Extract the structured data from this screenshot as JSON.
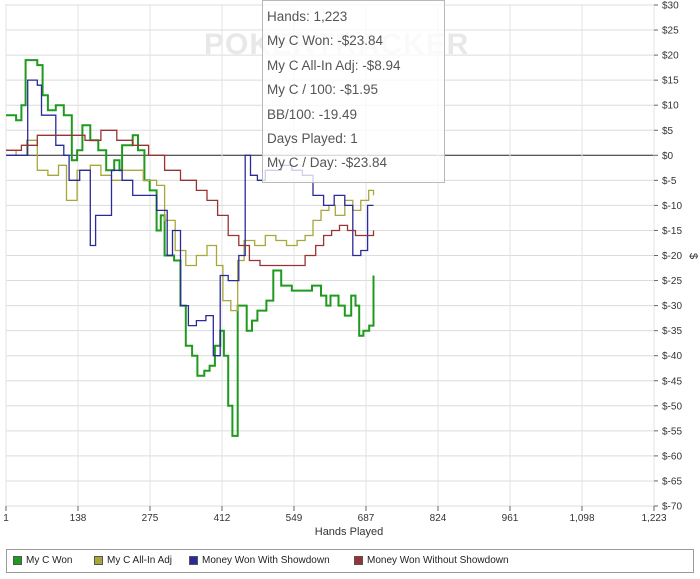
{
  "chart_data": {
    "type": "line",
    "xlabel": "Hands Played",
    "ylabel": "$",
    "xlim": [
      1,
      1223
    ],
    "ylim": [
      -70,
      30
    ],
    "x_ticks": [
      "1",
      "138",
      "275",
      "412",
      "549",
      "687",
      "824",
      "961",
      "1,098",
      "1,223"
    ],
    "y_ticks": [
      "$30",
      "$25",
      "$20",
      "$15",
      "$10",
      "$5",
      "$0",
      "$-5",
      "$-10",
      "$-15",
      "$-20",
      "$-25",
      "$-30",
      "$-35",
      "$-40",
      "$-45",
      "$-50",
      "$-55",
      "$-60",
      "$-65",
      "$-70"
    ],
    "grid": true,
    "legend_position": "bottom",
    "series": [
      {
        "name": "My C Won",
        "color": "#1f9a1f",
        "points": [
          [
            1,
            8
          ],
          [
            20,
            7
          ],
          [
            30,
            10
          ],
          [
            38,
            19
          ],
          [
            60,
            18
          ],
          [
            70,
            12
          ],
          [
            80,
            9
          ],
          [
            95,
            10
          ],
          [
            110,
            8
          ],
          [
            125,
            -1
          ],
          [
            135,
            1
          ],
          [
            145,
            6
          ],
          [
            160,
            3
          ],
          [
            175,
            1
          ],
          [
            190,
            -3
          ],
          [
            205,
            -1
          ],
          [
            215,
            -3
          ],
          [
            220,
            2
          ],
          [
            240,
            4
          ],
          [
            250,
            1
          ],
          [
            262,
            -5
          ],
          [
            272,
            -7
          ],
          [
            285,
            -15
          ],
          [
            293,
            -12
          ],
          [
            300,
            -20
          ],
          [
            318,
            -21
          ],
          [
            330,
            -30
          ],
          [
            340,
            -38
          ],
          [
            352,
            -40
          ],
          [
            362,
            -44
          ],
          [
            375,
            -43
          ],
          [
            385,
            -42
          ],
          [
            395,
            -38
          ],
          [
            405,
            -35
          ],
          [
            412,
            -40
          ],
          [
            420,
            -50
          ],
          [
            428,
            -56
          ],
          [
            438,
            -30
          ],
          [
            455,
            -35
          ],
          [
            465,
            -33
          ],
          [
            475,
            -31
          ],
          [
            492,
            -29
          ],
          [
            505,
            -23
          ],
          [
            520,
            -26
          ],
          [
            540,
            -27
          ],
          [
            560,
            -27
          ],
          [
            578,
            -26
          ],
          [
            595,
            -28
          ],
          [
            605,
            -30
          ],
          [
            613,
            -28
          ],
          [
            628,
            -30
          ],
          [
            640,
            -32
          ],
          [
            652,
            -28
          ],
          [
            660,
            -30
          ],
          [
            667,
            -36
          ],
          [
            675,
            -35
          ],
          [
            686,
            -34
          ],
          [
            694,
            -24
          ]
        ]
      },
      {
        "name": "My C All-In Adj",
        "color": "#a8a83a",
        "points": [
          [
            1,
            1
          ],
          [
            20,
            0
          ],
          [
            40,
            3
          ],
          [
            60,
            -3
          ],
          [
            80,
            -4
          ],
          [
            100,
            -2
          ],
          [
            115,
            -9
          ],
          [
            135,
            -3
          ],
          [
            160,
            -2
          ],
          [
            180,
            -4
          ],
          [
            200,
            -5
          ],
          [
            220,
            -3
          ],
          [
            240,
            -3
          ],
          [
            260,
            -5
          ],
          [
            285,
            -6
          ],
          [
            300,
            -13
          ],
          [
            320,
            -19
          ],
          [
            340,
            -22
          ],
          [
            360,
            -20
          ],
          [
            380,
            -18
          ],
          [
            398,
            -22
          ],
          [
            410,
            -29
          ],
          [
            425,
            -31
          ],
          [
            438,
            -21
          ],
          [
            450,
            -17
          ],
          [
            470,
            -18
          ],
          [
            490,
            -16
          ],
          [
            510,
            -17
          ],
          [
            530,
            -18
          ],
          [
            550,
            -17
          ],
          [
            565,
            -16
          ],
          [
            580,
            -13
          ],
          [
            595,
            -11
          ],
          [
            610,
            -10
          ],
          [
            622,
            -12
          ],
          [
            640,
            -9
          ],
          [
            655,
            -11
          ],
          [
            670,
            -9
          ],
          [
            685,
            -7
          ],
          [
            694,
            -8
          ]
        ]
      },
      {
        "name": "Money Won With Showdown",
        "color": "#2a2a9a",
        "points": [
          [
            1,
            0
          ],
          [
            30,
            0
          ],
          [
            42,
            15
          ],
          [
            60,
            14
          ],
          [
            68,
            8
          ],
          [
            95,
            2
          ],
          [
            110,
            0
          ],
          [
            120,
            -5
          ],
          [
            140,
            -3
          ],
          [
            160,
            -18
          ],
          [
            170,
            -12
          ],
          [
            200,
            -3
          ],
          [
            220,
            -5
          ],
          [
            240,
            -8
          ],
          [
            262,
            -8
          ],
          [
            285,
            -11
          ],
          [
            305,
            -20
          ],
          [
            315,
            -15
          ],
          [
            330,
            -30
          ],
          [
            345,
            -34
          ],
          [
            360,
            -33
          ],
          [
            378,
            -32
          ],
          [
            392,
            -40
          ],
          [
            405,
            -24
          ],
          [
            420,
            -25
          ],
          [
            440,
            -20
          ],
          [
            452,
            0
          ],
          [
            462,
            -4
          ],
          [
            475,
            -5
          ],
          [
            490,
            -3
          ],
          [
            520,
            -2
          ],
          [
            540,
            -3
          ],
          [
            560,
            -4
          ],
          [
            580,
            -8
          ],
          [
            600,
            -10
          ],
          [
            620,
            -8
          ],
          [
            640,
            -10
          ],
          [
            655,
            -20
          ],
          [
            670,
            -19
          ],
          [
            683,
            -10
          ],
          [
            694,
            -10
          ]
        ]
      },
      {
        "name": "Money Won Without Showdown",
        "color": "#993333",
        "points": [
          [
            1,
            1
          ],
          [
            30,
            2
          ],
          [
            60,
            4
          ],
          [
            90,
            4
          ],
          [
            120,
            4
          ],
          [
            150,
            3
          ],
          [
            180,
            5
          ],
          [
            210,
            3
          ],
          [
            240,
            2
          ],
          [
            270,
            0
          ],
          [
            300,
            -3
          ],
          [
            330,
            -5
          ],
          [
            360,
            -7
          ],
          [
            380,
            -9
          ],
          [
            400,
            -12
          ],
          [
            420,
            -16
          ],
          [
            440,
            -18
          ],
          [
            460,
            -21
          ],
          [
            480,
            -22
          ],
          [
            500,
            -22
          ],
          [
            520,
            -22
          ],
          [
            545,
            -22
          ],
          [
            565,
            -20
          ],
          [
            585,
            -18
          ],
          [
            600,
            -16
          ],
          [
            615,
            -15
          ],
          [
            630,
            -14
          ],
          [
            645,
            -15
          ],
          [
            660,
            -16
          ],
          [
            680,
            -16
          ],
          [
            694,
            -15
          ]
        ]
      }
    ]
  },
  "tooltip": {
    "hands": "Hands: 1,223",
    "won": "My C Won: -$23.84",
    "allin": "My C All-In Adj: -$8.94",
    "per100": "My C / 100: -$1.95",
    "bb100": "BB/100: -19.49",
    "days": "Days Played: 1",
    "perday": "My C / Day: -$23.84"
  },
  "watermark": "POKERTRACKER",
  "legend": [
    {
      "label": "My C Won",
      "color": "#1f9a1f"
    },
    {
      "label": "My C All-In Adj",
      "color": "#a8a83a"
    },
    {
      "label": "Money Won With Showdown",
      "color": "#2a2a9a"
    },
    {
      "label": "Money Won Without Showdown",
      "color": "#993333"
    }
  ]
}
